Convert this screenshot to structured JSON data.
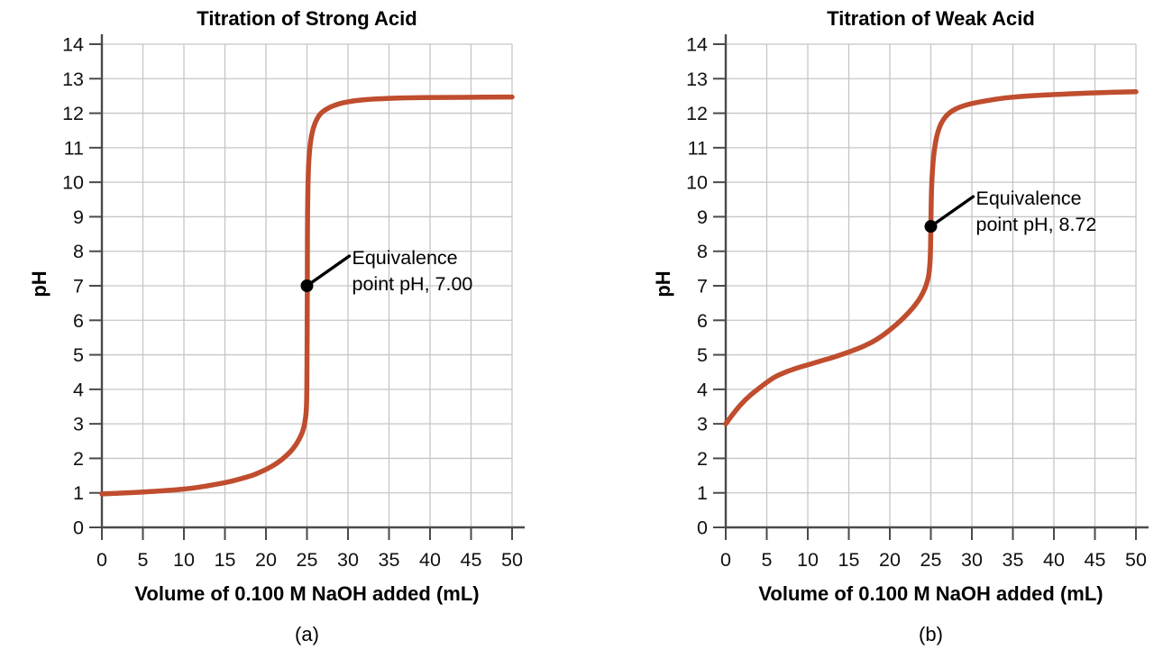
{
  "page": {
    "background": "#ffffff"
  },
  "chart_data": [
    {
      "type": "line",
      "title": "Titration of Strong Acid",
      "caption": "(a)",
      "xlabel": "Volume of 0.100 M NaOH added (mL)",
      "ylabel": "pH",
      "xlim": [
        0,
        50
      ],
      "ylim": [
        0,
        14
      ],
      "xticks": [
        0,
        5,
        10,
        15,
        20,
        25,
        30,
        35,
        40,
        45,
        50
      ],
      "yticks": [
        0,
        1,
        2,
        3,
        4,
        5,
        6,
        7,
        8,
        9,
        10,
        11,
        12,
        13,
        14
      ],
      "grid": true,
      "legend": "none",
      "line_color": "#bf4d2e",
      "series": [
        {
          "name": "strong acid titration curve",
          "points": [
            [
              0,
              0.97
            ],
            [
              2,
              0.99
            ],
            [
              4,
              1.01
            ],
            [
              6,
              1.04
            ],
            [
              8,
              1.07
            ],
            [
              10,
              1.11
            ],
            [
              12,
              1.17
            ],
            [
              14,
              1.25
            ],
            [
              16,
              1.35
            ],
            [
              18,
              1.48
            ],
            [
              19,
              1.57
            ],
            [
              20,
              1.68
            ],
            [
              21,
              1.81
            ],
            [
              22,
              1.98
            ],
            [
              23,
              2.2
            ],
            [
              23.6,
              2.38
            ],
            [
              24.1,
              2.58
            ],
            [
              24.5,
              2.8
            ],
            [
              24.75,
              3.05
            ],
            [
              24.9,
              3.35
            ],
            [
              24.97,
              3.8
            ],
            [
              25,
              4.6
            ],
            [
              25.02,
              5.6
            ],
            [
              25.04,
              7
            ],
            [
              25.06,
              8.4
            ],
            [
              25.08,
              9.2
            ],
            [
              25.12,
              9.9
            ],
            [
              25.2,
              10.5
            ],
            [
              25.35,
              11
            ],
            [
              25.6,
              11.4
            ],
            [
              26,
              11.72
            ],
            [
              26.6,
              11.97
            ],
            [
              27.4,
              12.12
            ],
            [
              28.5,
              12.24
            ],
            [
              30,
              12.33
            ],
            [
              32,
              12.39
            ],
            [
              35,
              12.43
            ],
            [
              39,
              12.45
            ],
            [
              44,
              12.46
            ],
            [
              50,
              12.47
            ]
          ]
        }
      ],
      "annotation": {
        "text_line1": "Equivalence",
        "text_line2": "point pH, 7.00",
        "at_x_mL": 25,
        "at_pH": 7.0,
        "marker": "black dot with leader line"
      }
    },
    {
      "type": "line",
      "title": "Titration of Weak Acid",
      "caption": "(b)",
      "xlabel": "Volume of 0.100 M NaOH added (mL)",
      "ylabel": "pH",
      "xlim": [
        0,
        50
      ],
      "ylim": [
        0,
        14
      ],
      "xticks": [
        0,
        5,
        10,
        15,
        20,
        25,
        30,
        35,
        40,
        45,
        50
      ],
      "yticks": [
        0,
        1,
        2,
        3,
        4,
        5,
        6,
        7,
        8,
        9,
        10,
        11,
        12,
        13,
        14
      ],
      "grid": true,
      "legend": "none",
      "line_color": "#bf4d2e",
      "series": [
        {
          "name": "weak acid titration curve",
          "points": [
            [
              0,
              3
            ],
            [
              1,
              3.32
            ],
            [
              2,
              3.6
            ],
            [
              3,
              3.83
            ],
            [
              4,
              4.02
            ],
            [
              5,
              4.2
            ],
            [
              6,
              4.36
            ],
            [
              7,
              4.47
            ],
            [
              8,
              4.56
            ],
            [
              9,
              4.64
            ],
            [
              10,
              4.71
            ],
            [
              11,
              4.78
            ],
            [
              12,
              4.85
            ],
            [
              13,
              4.92
            ],
            [
              14,
              5
            ],
            [
              15,
              5.08
            ],
            [
              16,
              5.17
            ],
            [
              17,
              5.27
            ],
            [
              18,
              5.39
            ],
            [
              19,
              5.54
            ],
            [
              20,
              5.72
            ],
            [
              21,
              5.92
            ],
            [
              22,
              6.15
            ],
            [
              22.8,
              6.36
            ],
            [
              23.5,
              6.58
            ],
            [
              24,
              6.78
            ],
            [
              24.4,
              7
            ],
            [
              24.7,
              7.26
            ],
            [
              24.85,
              7.52
            ],
            [
              24.93,
              7.85
            ],
            [
              24.98,
              8.3
            ],
            [
              25,
              8.72
            ],
            [
              25.03,
              9.2
            ],
            [
              25.08,
              9.7
            ],
            [
              25.15,
              10.15
            ],
            [
              25.3,
              10.65
            ],
            [
              25.5,
              11.05
            ],
            [
              25.8,
              11.4
            ],
            [
              26.3,
              11.72
            ],
            [
              27,
              11.95
            ],
            [
              28,
              12.12
            ],
            [
              29.5,
              12.25
            ],
            [
              31.5,
              12.35
            ],
            [
              34,
              12.44
            ],
            [
              37,
              12.5
            ],
            [
              41,
              12.55
            ],
            [
              45,
              12.59
            ],
            [
              50,
              12.62
            ]
          ]
        }
      ],
      "annotation": {
        "text_line1": "Equivalence",
        "text_line2": "point pH, 8.72",
        "at_x_mL": 25,
        "at_pH": 8.72,
        "marker": "black dot with leader line"
      }
    }
  ],
  "style": {
    "grid_color": "#c6c6c6",
    "axis_color": "#4a4a4a",
    "annotation_color": "#000000"
  }
}
